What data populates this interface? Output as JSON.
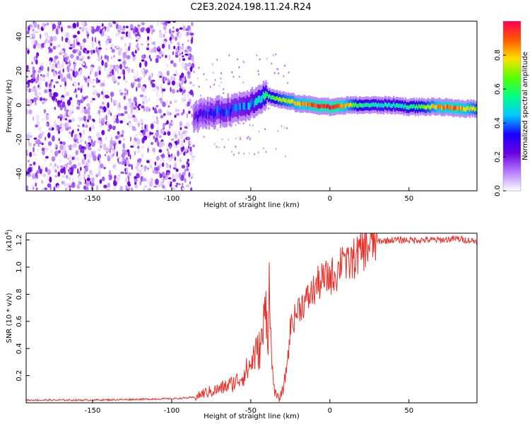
{
  "title": "C2E3.2024.198.11.24.R24",
  "chart_data": [
    {
      "type": "heatmap",
      "xlabel": "Height of straight line (km)",
      "ylabel": "Frequency (Hz)",
      "xlim": [
        -192,
        93
      ],
      "ylim": [
        -50,
        49
      ],
      "x_ticks": [
        -150,
        -100,
        -50,
        0,
        50
      ],
      "y_ticks": [
        -40,
        -20,
        0,
        20,
        40
      ],
      "noise_region_x": [
        -192,
        -86
      ],
      "ridge": {
        "x": [
          -86,
          -80,
          -70,
          -60,
          -50,
          -44,
          -40,
          -35,
          -30,
          -25,
          -20,
          -10,
          0,
          5,
          10,
          20,
          30,
          40,
          50,
          60,
          70,
          80,
          93
        ],
        "frequency": [
          -7,
          -5,
          -4,
          -2,
          1,
          4,
          6,
          4,
          3,
          2,
          1,
          0,
          -1,
          -1,
          0,
          0,
          0,
          0,
          -1,
          -1,
          -1,
          -2,
          -2
        ],
        "amplitude": [
          0.25,
          0.3,
          0.35,
          0.35,
          0.4,
          0.5,
          0.55,
          0.6,
          0.7,
          0.75,
          0.8,
          0.9,
          0.95,
          0.95,
          0.8,
          0.55,
          0.5,
          0.5,
          0.55,
          0.65,
          0.85,
          0.9,
          0.7
        ]
      },
      "colorbar": {
        "label": "Normalized spectral amplitude",
        "ticks": [
          0.0,
          0.2,
          0.4,
          0.6,
          0.8
        ],
        "range": [
          0,
          1
        ],
        "colors": [
          "#ffffff",
          "#b57cff",
          "#6a00e0",
          "#1a00ff",
          "#00c8ff",
          "#00ff88",
          "#55ff00",
          "#ffe000",
          "#ff5a00",
          "#ff0050"
        ]
      }
    },
    {
      "type": "line",
      "xlabel": "Height of straight line (km)",
      "ylabel": "SNR (10 * v/v)",
      "y_multiplier": "(x10",
      "y_multiplier_exp": "4",
      "y_multiplier_close": ")",
      "xlim": [
        -192,
        93
      ],
      "ylim": [
        0,
        12500
      ],
      "x_ticks": [
        -150,
        -100,
        -50,
        0,
        50
      ],
      "y_ticks": [
        2000,
        4000,
        6000,
        8000,
        10000,
        12000
      ],
      "y_tick_labels": [
        "0.2",
        "0.4",
        "0.6",
        "0.8",
        "1.0",
        "1.2"
      ],
      "color": "#e8302a",
      "series": [
        {
          "x": [
            -192,
            -150,
            -100,
            -85,
            -80,
            -70,
            -60,
            -55,
            -50,
            -48,
            -45,
            -43,
            -42,
            -40,
            -39,
            -38,
            -37,
            -36,
            -35,
            -34,
            -32,
            -30,
            -28,
            -26,
            -25,
            -24,
            -22,
            -20,
            -18,
            -15,
            -12,
            -10,
            -8,
            -5,
            0,
            5,
            8,
            9,
            10,
            12,
            15,
            20,
            25,
            30,
            40,
            50,
            60,
            70,
            80,
            93
          ],
          "values": [
            200,
            200,
            300,
            400,
            700,
            1000,
            1500,
            2000,
            2800,
            3500,
            3800,
            4500,
            5500,
            7500,
            4500,
            10700,
            3000,
            2000,
            1000,
            500,
            300,
            800,
            2000,
            4000,
            5500,
            6000,
            6300,
            7000,
            7200,
            7500,
            8000,
            8300,
            8700,
            9000,
            9300,
            9600,
            11000,
            12000,
            9800,
            10200,
            10600,
            11200,
            11600,
            11900,
            12000,
            12000,
            12000,
            12000,
            12100,
            11900
          ]
        }
      ]
    }
  ]
}
